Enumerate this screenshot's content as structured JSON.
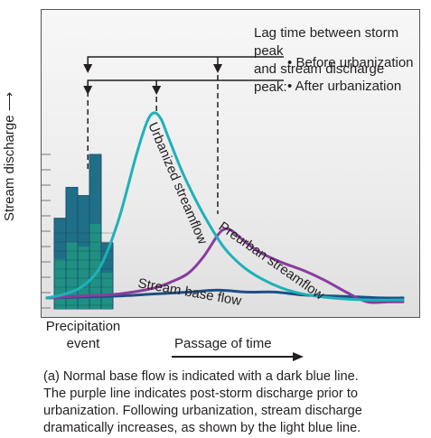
{
  "chart_data": {
    "type": "line",
    "title": "",
    "ylabel": "Stream discharge",
    "xlabel": "Passage of time",
    "annotations": {
      "lag_heading": [
        "Lag time between storm peak",
        "and stream discharge peak:"
      ],
      "before_label": "Before urbanization",
      "after_label": "After urbanization",
      "precipitation_label": [
        "Precipitation",
        "event"
      ]
    },
    "series": [
      {
        "name": "Urbanized streamflow",
        "color": "#1eb1b8",
        "x": [
          0.0,
          0.05,
          0.1,
          0.15,
          0.2,
          0.25,
          0.28,
          0.3,
          0.32,
          0.34,
          0.38,
          0.42,
          0.46,
          0.5,
          0.55,
          0.6,
          0.66,
          0.72,
          0.8,
          0.9,
          1.0
        ],
        "y": [
          0.06,
          0.08,
          0.12,
          0.22,
          0.45,
          0.78,
          0.95,
          1.0,
          0.97,
          0.88,
          0.7,
          0.55,
          0.42,
          0.31,
          0.22,
          0.16,
          0.11,
          0.08,
          0.06,
          0.05,
          0.05
        ]
      },
      {
        "name": "Preurban streamflow",
        "color": "#8a3c9e",
        "x": [
          0.0,
          0.1,
          0.2,
          0.3,
          0.36,
          0.4,
          0.44,
          0.48,
          0.5,
          0.52,
          0.56,
          0.6,
          0.66,
          0.72,
          0.78,
          0.84,
          0.9,
          0.96,
          1.0
        ],
        "y": [
          0.06,
          0.07,
          0.08,
          0.11,
          0.15,
          0.19,
          0.27,
          0.38,
          0.41,
          0.4,
          0.34,
          0.29,
          0.24,
          0.2,
          0.15,
          0.09,
          0.04,
          0.04,
          0.04
        ]
      },
      {
        "name": "Stream base flow",
        "color": "#1c4e84",
        "x": [
          0.0,
          0.1,
          0.2,
          0.3,
          0.4,
          0.48,
          0.56,
          0.64,
          0.72,
          0.8,
          0.88,
          0.94,
          1.0
        ],
        "y": [
          0.06,
          0.065,
          0.07,
          0.08,
          0.09,
          0.1,
          0.09,
          0.09,
          0.075,
          0.07,
          0.065,
          0.06,
          0.06
        ]
      }
    ],
    "precipitation": {
      "name": "Precipitation event",
      "values": [
        0.44,
        0.59,
        0.55,
        0.75,
        0.32
      ],
      "bar_color": "#1f6f86",
      "fill_color": "#1f9481",
      "dark_color": "#1d4f7a"
    },
    "lag_markers": [
      {
        "label": "Before urbanization",
        "storm_peak_x": 0.13,
        "discharge_peak_x": 0.5
      },
      {
        "label": "After urbanization",
        "storm_peak_x": 0.13,
        "discharge_peak_x": 0.3
      }
    ],
    "axis": {
      "xlim": [
        0,
        1
      ],
      "ylim": [
        0,
        1
      ],
      "grid": false,
      "arrows": true
    }
  },
  "caption": {
    "lines": [
      "(a) Normal base flow is indicated with a dark blue line.",
      "The purple line indicates post-storm discharge prior to",
      "urbanization. Following urbanization, stream discharge",
      "dramatically increases, as shown by the light blue line."
    ]
  }
}
